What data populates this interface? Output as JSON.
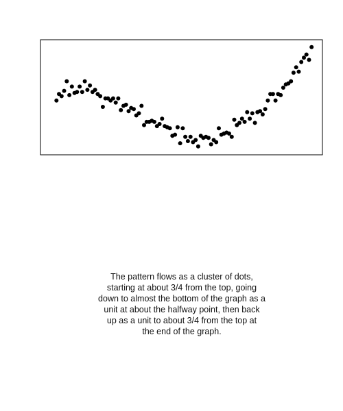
{
  "chart_data": {
    "type": "scatter",
    "title": "",
    "xlabel": "",
    "ylabel": "",
    "grid": false,
    "legend": "none",
    "xlim": [
      -3,
      100
    ],
    "ylim": [
      0.0,
      1.0
    ],
    "point_color": "#000000",
    "frame_color": "#000000",
    "series": [
      {
        "values": [
          {
            "x": 0,
            "y": 0.47
          },
          {
            "x": 1,
            "y": 0.53
          },
          {
            "x": 2,
            "y": 0.51
          },
          {
            "x": 3,
            "y": 0.56
          },
          {
            "x": 4,
            "y": 0.65
          },
          {
            "x": 5,
            "y": 0.52
          },
          {
            "x": 6,
            "y": 0.6
          },
          {
            "x": 7,
            "y": 0.54
          },
          {
            "x": 8,
            "y": 0.55
          },
          {
            "x": 9,
            "y": 0.6
          },
          {
            "x": 10,
            "y": 0.55
          },
          {
            "x": 11,
            "y": 0.65
          },
          {
            "x": 12,
            "y": 0.57
          },
          {
            "x": 13,
            "y": 0.61
          },
          {
            "x": 14,
            "y": 0.55
          },
          {
            "x": 15,
            "y": 0.57
          },
          {
            "x": 16,
            "y": 0.53
          },
          {
            "x": 17,
            "y": 0.51
          },
          {
            "x": 18,
            "y": 0.41
          },
          {
            "x": 19,
            "y": 0.49
          },
          {
            "x": 20,
            "y": 0.49
          },
          {
            "x": 21,
            "y": 0.47
          },
          {
            "x": 22,
            "y": 0.49
          },
          {
            "x": 23,
            "y": 0.45
          },
          {
            "x": 24,
            "y": 0.49
          },
          {
            "x": 25,
            "y": 0.38
          },
          {
            "x": 26,
            "y": 0.42
          },
          {
            "x": 27,
            "y": 0.43
          },
          {
            "x": 28,
            "y": 0.37
          },
          {
            "x": 29,
            "y": 0.4
          },
          {
            "x": 30,
            "y": 0.39
          },
          {
            "x": 31,
            "y": 0.33
          },
          {
            "x": 32,
            "y": 0.35
          },
          {
            "x": 33,
            "y": 0.42
          },
          {
            "x": 34,
            "y": 0.24
          },
          {
            "x": 35,
            "y": 0.27
          },
          {
            "x": 36,
            "y": 0.27
          },
          {
            "x": 37,
            "y": 0.28
          },
          {
            "x": 38,
            "y": 0.27
          },
          {
            "x": 39,
            "y": 0.23
          },
          {
            "x": 40,
            "y": 0.25
          },
          {
            "x": 41,
            "y": 0.3
          },
          {
            "x": 42,
            "y": 0.23
          },
          {
            "x": 43,
            "y": 0.22
          },
          {
            "x": 44,
            "y": 0.21
          },
          {
            "x": 45,
            "y": 0.14
          },
          {
            "x": 46,
            "y": 0.15
          },
          {
            "x": 47,
            "y": 0.22
          },
          {
            "x": 48,
            "y": 0.07
          },
          {
            "x": 49,
            "y": 0.21
          },
          {
            "x": 50,
            "y": 0.13
          },
          {
            "x": 51,
            "y": 0.09
          },
          {
            "x": 52,
            "y": 0.13
          },
          {
            "x": 53,
            "y": 0.08
          },
          {
            "x": 54,
            "y": 0.1
          },
          {
            "x": 55,
            "y": 0.04
          },
          {
            "x": 56,
            "y": 0.14
          },
          {
            "x": 57,
            "y": 0.12
          },
          {
            "x": 58,
            "y": 0.13
          },
          {
            "x": 59,
            "y": 0.12
          },
          {
            "x": 60,
            "y": 0.06
          },
          {
            "x": 61,
            "y": 0.1
          },
          {
            "x": 62,
            "y": 0.08
          },
          {
            "x": 63,
            "y": 0.21
          },
          {
            "x": 64,
            "y": 0.15
          },
          {
            "x": 65,
            "y": 0.16
          },
          {
            "x": 66,
            "y": 0.17
          },
          {
            "x": 67,
            "y": 0.16
          },
          {
            "x": 68,
            "y": 0.13
          },
          {
            "x": 69,
            "y": 0.29
          },
          {
            "x": 70,
            "y": 0.24
          },
          {
            "x": 71,
            "y": 0.26
          },
          {
            "x": 72,
            "y": 0.3
          },
          {
            "x": 73,
            "y": 0.27
          },
          {
            "x": 74,
            "y": 0.36
          },
          {
            "x": 75,
            "y": 0.3
          },
          {
            "x": 76,
            "y": 0.35
          },
          {
            "x": 77,
            "y": 0.26
          },
          {
            "x": 78,
            "y": 0.36
          },
          {
            "x": 79,
            "y": 0.37
          },
          {
            "x": 80,
            "y": 0.34
          },
          {
            "x": 81,
            "y": 0.39
          },
          {
            "x": 82,
            "y": 0.47
          },
          {
            "x": 83,
            "y": 0.53
          },
          {
            "x": 84,
            "y": 0.53
          },
          {
            "x": 85,
            "y": 0.47
          },
          {
            "x": 86,
            "y": 0.53
          },
          {
            "x": 87,
            "y": 0.52
          },
          {
            "x": 88,
            "y": 0.59
          },
          {
            "x": 89,
            "y": 0.62
          },
          {
            "x": 90,
            "y": 0.63
          },
          {
            "x": 91,
            "y": 0.65
          },
          {
            "x": 92,
            "y": 0.73
          },
          {
            "x": 93,
            "y": 0.78
          },
          {
            "x": 94,
            "y": 0.74
          },
          {
            "x": 95,
            "y": 0.83
          },
          {
            "x": 96,
            "y": 0.87
          },
          {
            "x": 97,
            "y": 0.9
          },
          {
            "x": 98,
            "y": 0.85
          },
          {
            "x": 99,
            "y": 0.97
          }
        ]
      }
    ]
  },
  "caption": {
    "text": "The pattern flows as a cluster of dots,\nstarting at about 3/4 from the top, going\ndown to almost the bottom of the graph as a\nunit at about the halfway point, then back\nup as a unit to about 3/4 from the top at\nthe end of the graph."
  }
}
